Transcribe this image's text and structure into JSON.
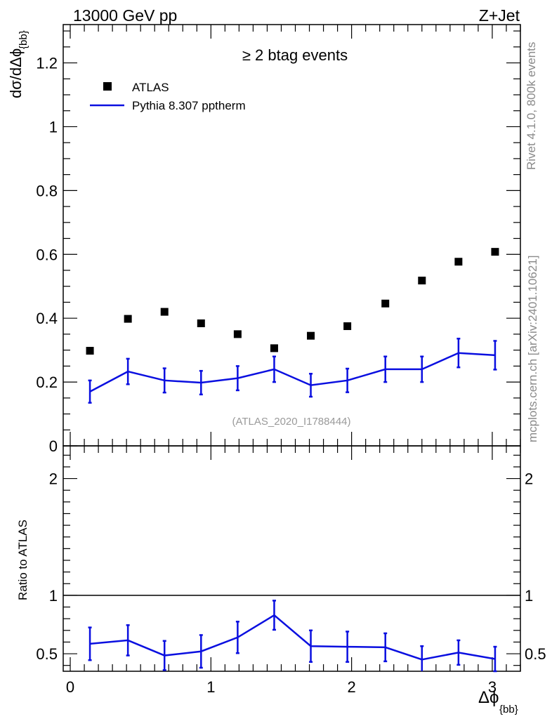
{
  "header": {
    "left": "13000 GeV pp",
    "right": "Z+Jet"
  },
  "side_labels": {
    "rivet": "Rivet 4.1.0,  800k events",
    "source": "mcplots.cern.ch [arXiv:2401.10621]"
  },
  "watermark": "(ATLAS_2020_I1788444)",
  "colors": {
    "data": "#000000",
    "mc": "#0a0fe0",
    "watermark": "#9a9a9a"
  },
  "chart_data": [
    {
      "type": "scatter",
      "title": "≥ 2 btag events",
      "ylabel": {
        "main": "dσ/dΔϕ",
        "sub": "{bb}"
      },
      "xlim": [
        -0.05,
        3.2
      ],
      "ylim": [
        0,
        1.32
      ],
      "yticks": [
        0,
        0.2,
        0.4,
        0.6,
        0.8,
        1,
        1.2
      ],
      "ytick_labels": [
        "0",
        "0.2",
        "0.4",
        "0.6",
        "0.8",
        "1",
        "1.2"
      ],
      "legend": {
        "placement": "top-left",
        "entries": [
          "ATLAS",
          "Pythia 8.307 pptherm"
        ]
      },
      "series": [
        {
          "name": "ATLAS",
          "style": "markers",
          "x": [
            0.14,
            0.41,
            0.67,
            0.93,
            1.19,
            1.45,
            1.71,
            1.97,
            2.24,
            2.5,
            2.76,
            3.02
          ],
          "y": [
            0.298,
            0.398,
            0.42,
            0.384,
            0.35,
            0.306,
            0.345,
            0.375,
            0.446,
            0.518,
            0.577,
            0.608
          ]
        },
        {
          "name": "Pythia 8.307 pptherm",
          "style": "line-with-errors",
          "x": [
            0.14,
            0.41,
            0.67,
            0.93,
            1.19,
            1.45,
            1.71,
            1.97,
            2.24,
            2.5,
            2.76,
            3.02
          ],
          "y": [
            0.17,
            0.233,
            0.205,
            0.198,
            0.212,
            0.24,
            0.19,
            0.205,
            0.24,
            0.24,
            0.291,
            0.284
          ],
          "err": [
            0.035,
            0.04,
            0.038,
            0.037,
            0.038,
            0.04,
            0.036,
            0.037,
            0.04,
            0.04,
            0.045,
            0.045
          ]
        }
      ]
    },
    {
      "type": "line",
      "ylabel": "Ratio to ATLAS",
      "xlabel": {
        "main": "Δϕ",
        "sub": "{bb}"
      },
      "xlim": [
        -0.05,
        3.2
      ],
      "ylim": [
        0.35,
        2.28
      ],
      "xticks": [
        0,
        1,
        2,
        3
      ],
      "xtick_labels": [
        "0",
        "1",
        "2",
        "3"
      ],
      "yticks": [
        0.5,
        1,
        2
      ],
      "ytick_labels": [
        "0.5",
        "1",
        "2"
      ],
      "reference_line": 1,
      "series": [
        {
          "name": "Pythia 8.307 pptherm / ATLAS",
          "x": [
            0.14,
            0.41,
            0.67,
            0.93,
            1.19,
            1.45,
            1.71,
            1.97,
            2.24,
            2.5,
            2.76,
            3.02
          ],
          "y": [
            0.585,
            0.615,
            0.485,
            0.52,
            0.64,
            0.83,
            0.565,
            0.56,
            0.555,
            0.45,
            0.51,
            0.455
          ],
          "err": [
            0.14,
            0.13,
            0.125,
            0.14,
            0.135,
            0.125,
            0.135,
            0.13,
            0.12,
            0.115,
            0.105,
            0.105
          ]
        }
      ]
    }
  ]
}
